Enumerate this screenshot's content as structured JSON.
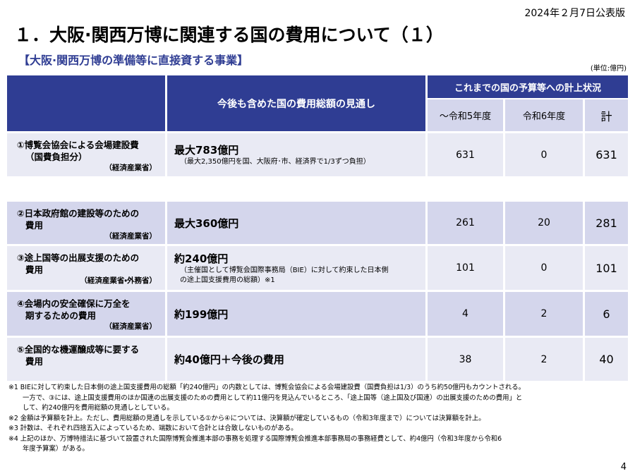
{
  "header": {
    "date": "2024年２月7日公表版",
    "title": "１．大阪·関西万博に関連する国の費用について（１）",
    "subtitle": "【大阪·関西万博の準備等に直接資する事業】",
    "unit": "(単位:億円)"
  },
  "table": {
    "head": {
      "outlook": "今後も含めた国の費用総額の見通し",
      "status": "これまでの国の予算等への計上状況",
      "columns": [
        "～令和5年度",
        "令和6年度",
        "計"
      ]
    },
    "rows": [
      {
        "label": [
          "①博覧会協会による会場建設費",
          "（国費負担分）"
        ],
        "ministry": "（経済産業省）",
        "amount": "最大783億円",
        "note": [
          "（最大2,350億円を国、大阪府･市、経済界で1/3ずつ負担）"
        ],
        "values": [
          631,
          0,
          631
        ]
      },
      {
        "label": [
          "②日本政府館の建設等のための",
          "費用"
        ],
        "ministry": "（経済産業省）",
        "amount": "最大360億円",
        "note": [],
        "values": [
          261,
          20,
          281
        ]
      },
      {
        "label": [
          "③途上国等の出展支援のための",
          "費用"
        ],
        "ministry": "（経済産業省・外務省）",
        "amount": "約240億円",
        "note": [
          "（主催国として博覧会国際事務局（BIE）に対して約束した日本側",
          "の途上国支援費用の総額）※1"
        ],
        "values": [
          101,
          0,
          101
        ]
      },
      {
        "label": [
          "④会場内の安全確保に万全を",
          "期するための費用"
        ],
        "ministry": "（経済産業省）",
        "amount": "約199億円",
        "note": [],
        "values": [
          4,
          2,
          6
        ]
      },
      {
        "label": [
          "⑤全国的な機運醸成等に要する",
          "費用"
        ],
        "ministry": "",
        "amount": "約40億円＋今後の費用",
        "note": [],
        "values": [
          38,
          2,
          40
        ]
      }
    ]
  },
  "footnotes": [
    "※1 BIEに対して約束した日本側の途上国支援費用の総額「約240億円」の内数としては、博覧会協会による会場建設費（国費負担は1/3）のうち約50億円もカウントされる。",
    "一方で、③には、途上国支援費用のほか国連の出展支援のための費用として約11億円を見込んでいるところ、「途上国等（途上国及び国連）の出展支援のための費用」と",
    "して、約240億円を費用総額の見通しとしている。",
    "※2 金額は予算額を計上。ただし、費用総額の見通しを示している①から④については、決算額が確定しているもの（令和3年度まで）については決算額を計上。",
    "※3 計数は、それぞれ四捨五入によっているため、端数において合計とは合致しないものがある。",
    "※4 上記のほか、万博特措法に基づいて設置された国際博覧会推進本部の事務を処理する国際博覧会推進本部事務局の事務経費として、約4億円（令和3年度から令和6",
    "年度予算案）がある。"
  ],
  "page_number": "4"
}
